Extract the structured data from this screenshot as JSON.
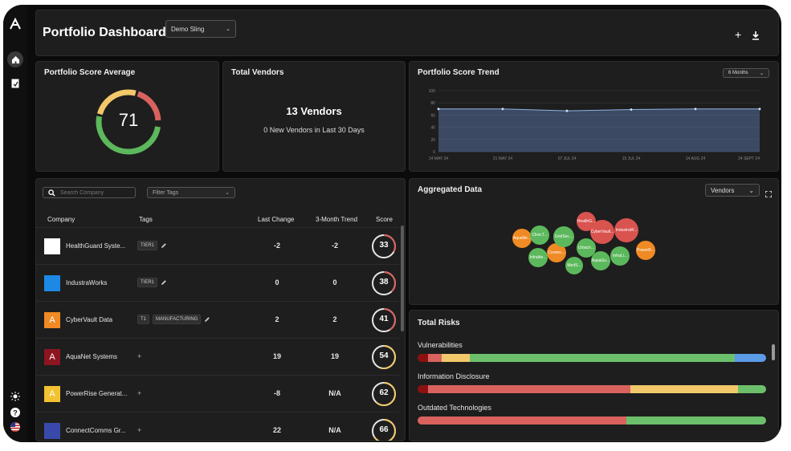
{
  "header": {
    "title": "Portfolio Dashboard",
    "org_select": "Demo Sling",
    "add_icon": "plus-icon",
    "download_icon": "download-icon"
  },
  "rail": {
    "logo_icon": "brand-logo-icon",
    "home_icon": "home-icon",
    "doc_icon": "document-icon",
    "theme_icon": "sun-icon",
    "help_icon": "help-icon",
    "locale_icon": "us-flag-icon"
  },
  "score_avg": {
    "title": "Portfolio Score Average",
    "value": "71"
  },
  "vendors": {
    "title": "Total Vendors",
    "count": "13 Vendors",
    "new": "0 New Vendors in Last 30 Days"
  },
  "trend": {
    "title": "Portfolio Score Trend",
    "period": "6 Months",
    "chart_data": {
      "type": "area",
      "x": [
        "14 MAY 24",
        "21 MAY 24",
        "07 JUL 24",
        "15 JUL 24",
        "14 AUG 24",
        "24 SEPT 24"
      ],
      "y": [
        70,
        70,
        67,
        69,
        70,
        70
      ],
      "yticks": [
        "100",
        "80",
        "60",
        "40",
        "20",
        "0"
      ],
      "ylim": [
        0,
        100
      ],
      "grid": true
    }
  },
  "table": {
    "search_placeholder": "Search Company",
    "filter_placeholder": "Filter Tags",
    "headers": {
      "company": "Company",
      "tags": "Tags",
      "last_change": "Last Change",
      "trend": "3-Month Trend",
      "score": "Score"
    },
    "rows": [
      {
        "name": "HealthGuard Syste...",
        "tags": [
          "TIER1"
        ],
        "edit": true,
        "last_change": "-2",
        "trend": "-2",
        "score": "33",
        "score_value": 33,
        "logo_text": "",
        "logo_color": "#ffffff"
      },
      {
        "name": "IndustraWorks",
        "tags": [
          "TIER1"
        ],
        "edit": true,
        "last_change": "0",
        "trend": "0",
        "score": "38",
        "score_value": 38,
        "logo_text": "",
        "logo_color": "#1e88e5"
      },
      {
        "name": "CyberVault Data",
        "tags": [
          "T1",
          "MANUFACTURING"
        ],
        "edit": true,
        "last_change": "2",
        "trend": "2",
        "score": "41",
        "score_value": 41,
        "logo_text": "A",
        "logo_color": "#f08a24"
      },
      {
        "name": "AquaNet Systems",
        "tags": [],
        "add": "+",
        "last_change": "19",
        "trend": "19",
        "score": "54",
        "score_value": 54,
        "logo_text": "A",
        "logo_color": "#8c1520"
      },
      {
        "name": "PowerRise Generat...",
        "tags": [],
        "add": "+",
        "last_change": "-8",
        "trend": "N/A",
        "score": "62",
        "score_value": 62,
        "logo_text": "A",
        "logo_color": "#f2c230"
      },
      {
        "name": "ConnectComms Gr...",
        "tags": [],
        "add": "+",
        "last_change": "22",
        "trend": "N/A",
        "score": "66",
        "score_value": 66,
        "logo_text": "",
        "logo_color": "#3949ab"
      }
    ]
  },
  "aggregated": {
    "title": "Aggregated Data",
    "select": "Vendors",
    "bubbles": [
      {
        "label": "HealthG...",
        "color": "#d9534f"
      },
      {
        "label": "CyberVault...",
        "color": "#d9534f"
      },
      {
        "label": "IndustraW...",
        "color": "#d9534f"
      },
      {
        "label": "AquaNe...",
        "color": "#f08a24"
      },
      {
        "label": "PowerR...",
        "color": "#f08a24"
      },
      {
        "label": "Connec...",
        "color": "#f08a24"
      },
      {
        "label": "ClinicT...",
        "color": "#5cb85c"
      },
      {
        "label": "GridSec...",
        "color": "#5cb85c"
      },
      {
        "label": "Urbach...",
        "color": "#5cb85c"
      },
      {
        "label": "InfraLi...",
        "color": "#5cb85c"
      },
      {
        "label": "AquaGu...",
        "color": "#5cb85c"
      },
      {
        "label": "MedS...",
        "color": "#5cb85c"
      },
      {
        "label": "Infrable...",
        "color": "#5cb85c"
      }
    ]
  },
  "risks": {
    "title": "Total Risks",
    "items": [
      {
        "label": "Vulnerabilities",
        "segments": [
          {
            "value": 3,
            "color": "#8b1010"
          },
          {
            "value": 4,
            "color": "#d9625f"
          },
          {
            "value": 8,
            "color": "#f2c86a"
          },
          {
            "value": 76,
            "color": "#6cc06c"
          },
          {
            "value": 9,
            "color": "#5b9be8"
          }
        ]
      },
      {
        "label": "Information Disclosure",
        "segments": [
          {
            "value": 3,
            "color": "#8b1010"
          },
          {
            "value": 58,
            "color": "#d9625f"
          },
          {
            "value": 31,
            "color": "#f2c86a"
          },
          {
            "value": 8,
            "color": "#6cc06c"
          }
        ]
      },
      {
        "label": "Outdated Technologies",
        "segments": [
          {
            "value": 60,
            "color": "#d9625f"
          },
          {
            "value": 40,
            "color": "#6cc06c"
          }
        ]
      }
    ]
  }
}
